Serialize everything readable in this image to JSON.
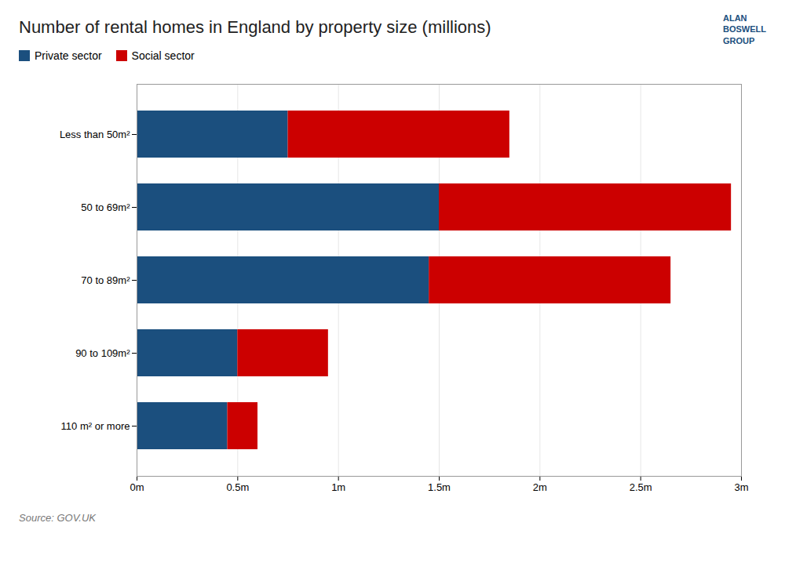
{
  "chart_data": {
    "type": "bar",
    "orientation": "horizontal",
    "stacked": true,
    "title": "Number of rental homes in England by property size (millions)",
    "source": "Source: GOV.UK",
    "annotations": [
      "ALAN",
      "BOSWELL",
      "GROUP"
    ],
    "categories": [
      "Less than 50m²",
      "50 to 69m²",
      "70 to 89m²",
      "90 to 109m²",
      "110 m² or more"
    ],
    "series": [
      {
        "name": "Private sector",
        "color": "#1b4f7e",
        "values": [
          0.75,
          1.5,
          1.45,
          0.5,
          0.45
        ]
      },
      {
        "name": "Social sector",
        "color": "#cc0000",
        "values": [
          1.1,
          1.45,
          1.2,
          0.45,
          0.15
        ]
      }
    ],
    "xlim": [
      0,
      3.0
    ],
    "xticks": [
      {
        "value": 0,
        "label": "0m"
      },
      {
        "value": 0.5,
        "label": "0.5m"
      },
      {
        "value": 1.0,
        "label": "1m"
      },
      {
        "value": 1.5,
        "label": "1.5m"
      },
      {
        "value": 2.0,
        "label": "2m"
      },
      {
        "value": 2.5,
        "label": "2.5m"
      },
      {
        "value": 3.0,
        "label": "3m"
      }
    ],
    "grid": true,
    "legend": "top-left"
  }
}
